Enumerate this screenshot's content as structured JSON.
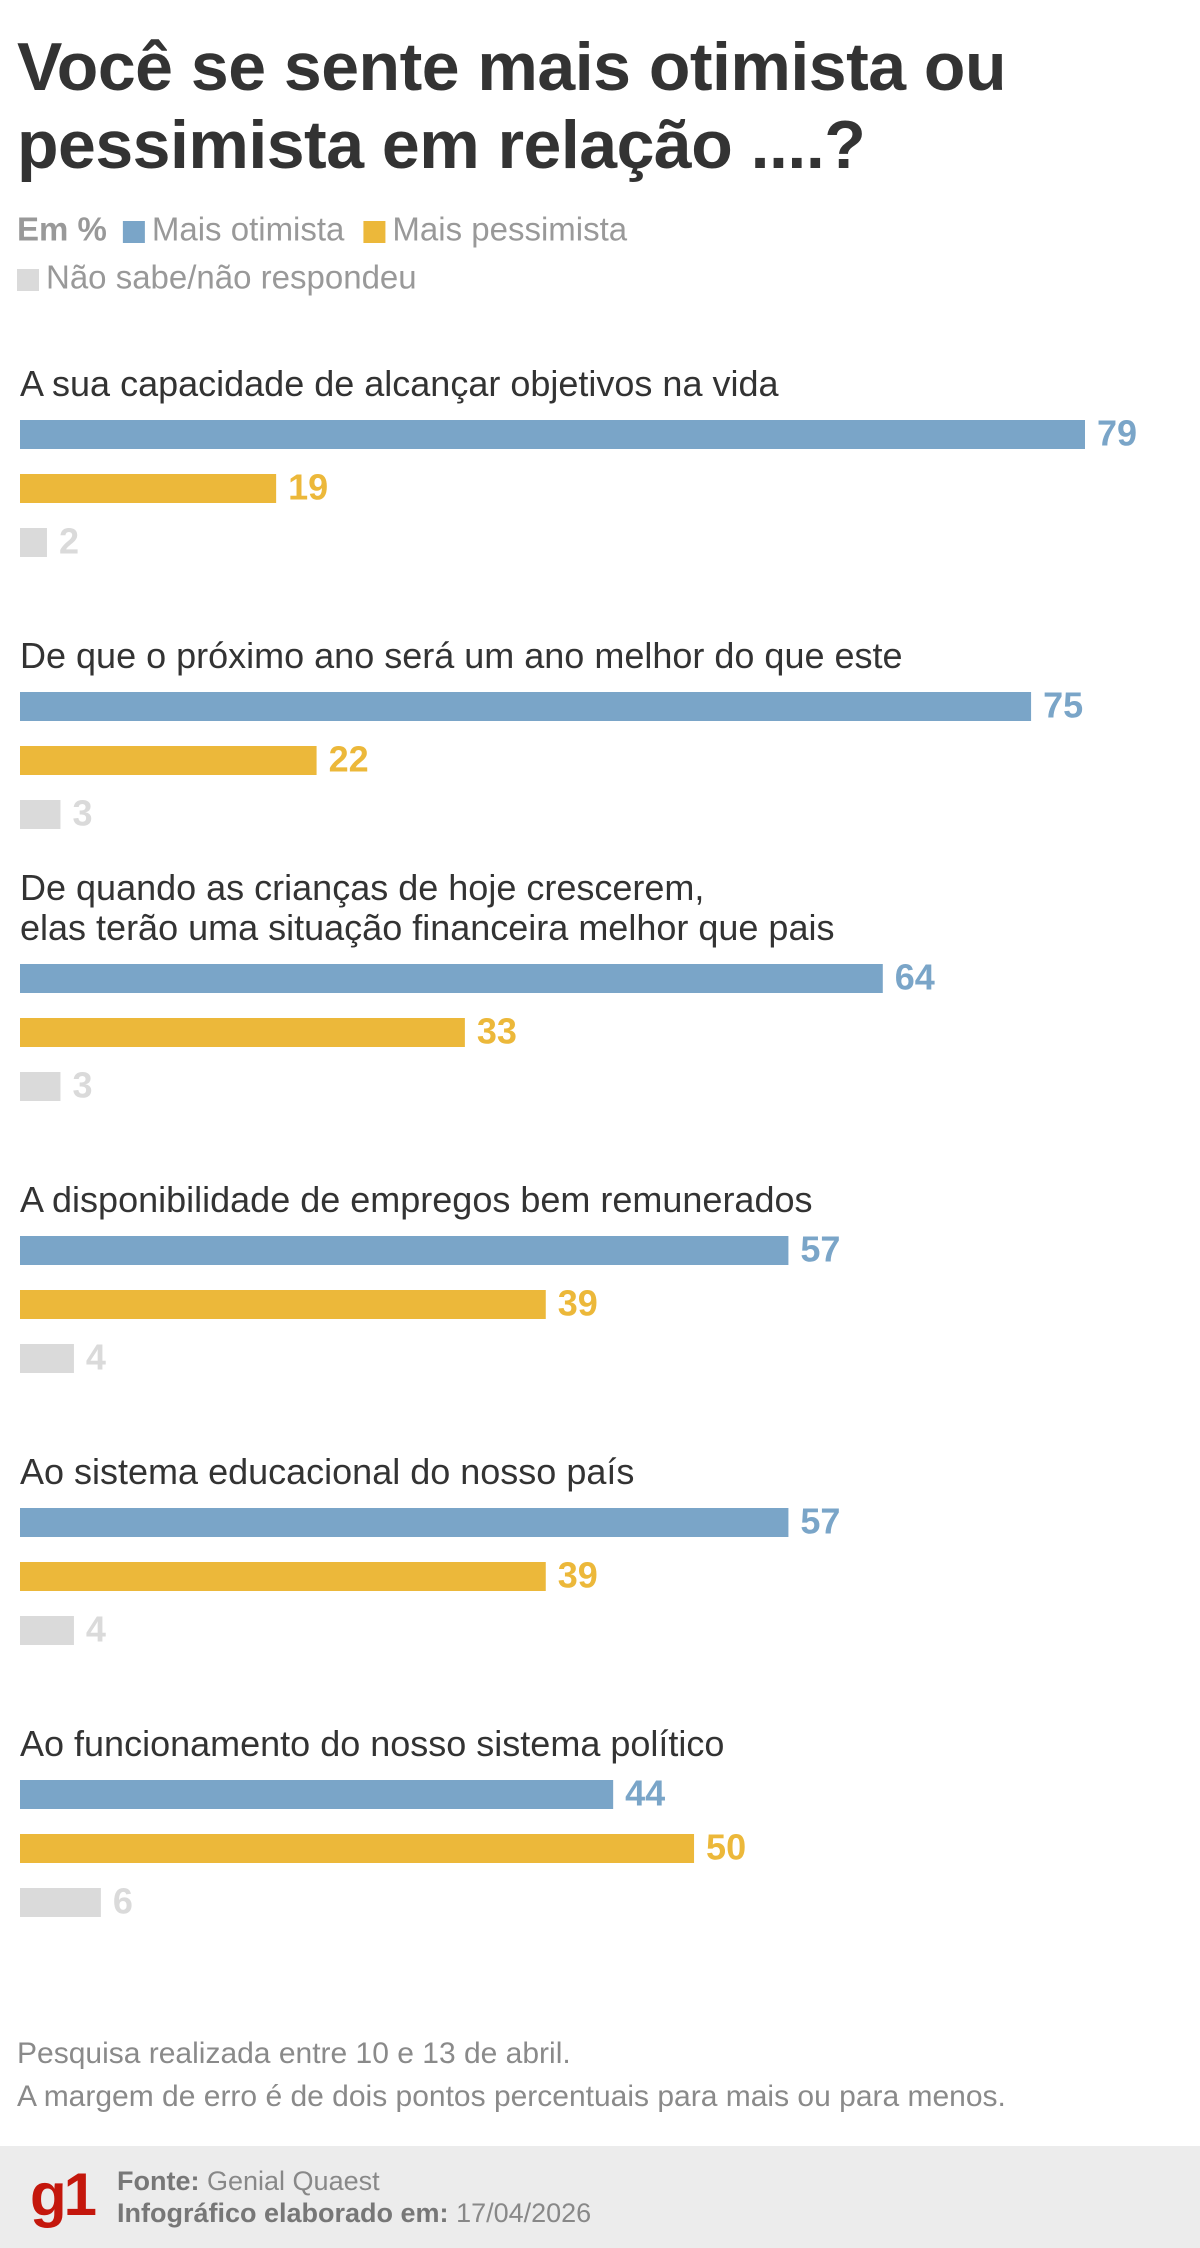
{
  "chart_data": {
    "type": "bar",
    "orientation": "horizontal",
    "title": "Você se sente mais otimista ou\npessimista em relação ....?",
    "legend_title": "Em %",
    "categories": [
      "A sua capacidade de alcançar objetivos na vida",
      "De que o próximo ano será um ano melhor do que este",
      "De quando as crianças de hoje crescerem,\nelas terão uma situação financeira melhor que pais",
      "A disponibilidade de empregos bem remunerados",
      "Ao sistema educacional do nosso país",
      "Ao funcionamento do nosso sistema político"
    ],
    "series": [
      {
        "name": "Mais otimista",
        "color": "#7aa5c8",
        "values": [
          79,
          75,
          64,
          57,
          57,
          44
        ]
      },
      {
        "name": "Mais pessimista",
        "color": "#ecb83a",
        "values": [
          19,
          22,
          33,
          39,
          39,
          50
        ]
      },
      {
        "name": "Não sabe/não respondeu",
        "color": "#dadada",
        "values": [
          2,
          3,
          3,
          4,
          4,
          6
        ]
      }
    ],
    "notes": [
      "Pesquisa realizada entre 10 e 13 de abril.",
      "A margem de erro é de dois pontos percentuais para mais ou para menos."
    ],
    "logo": "g1",
    "source_label": "Fonte:",
    "source": "Genial Quaest",
    "date_label": "Infográfico elaborado em:",
    "date": "17/04/2026"
  }
}
